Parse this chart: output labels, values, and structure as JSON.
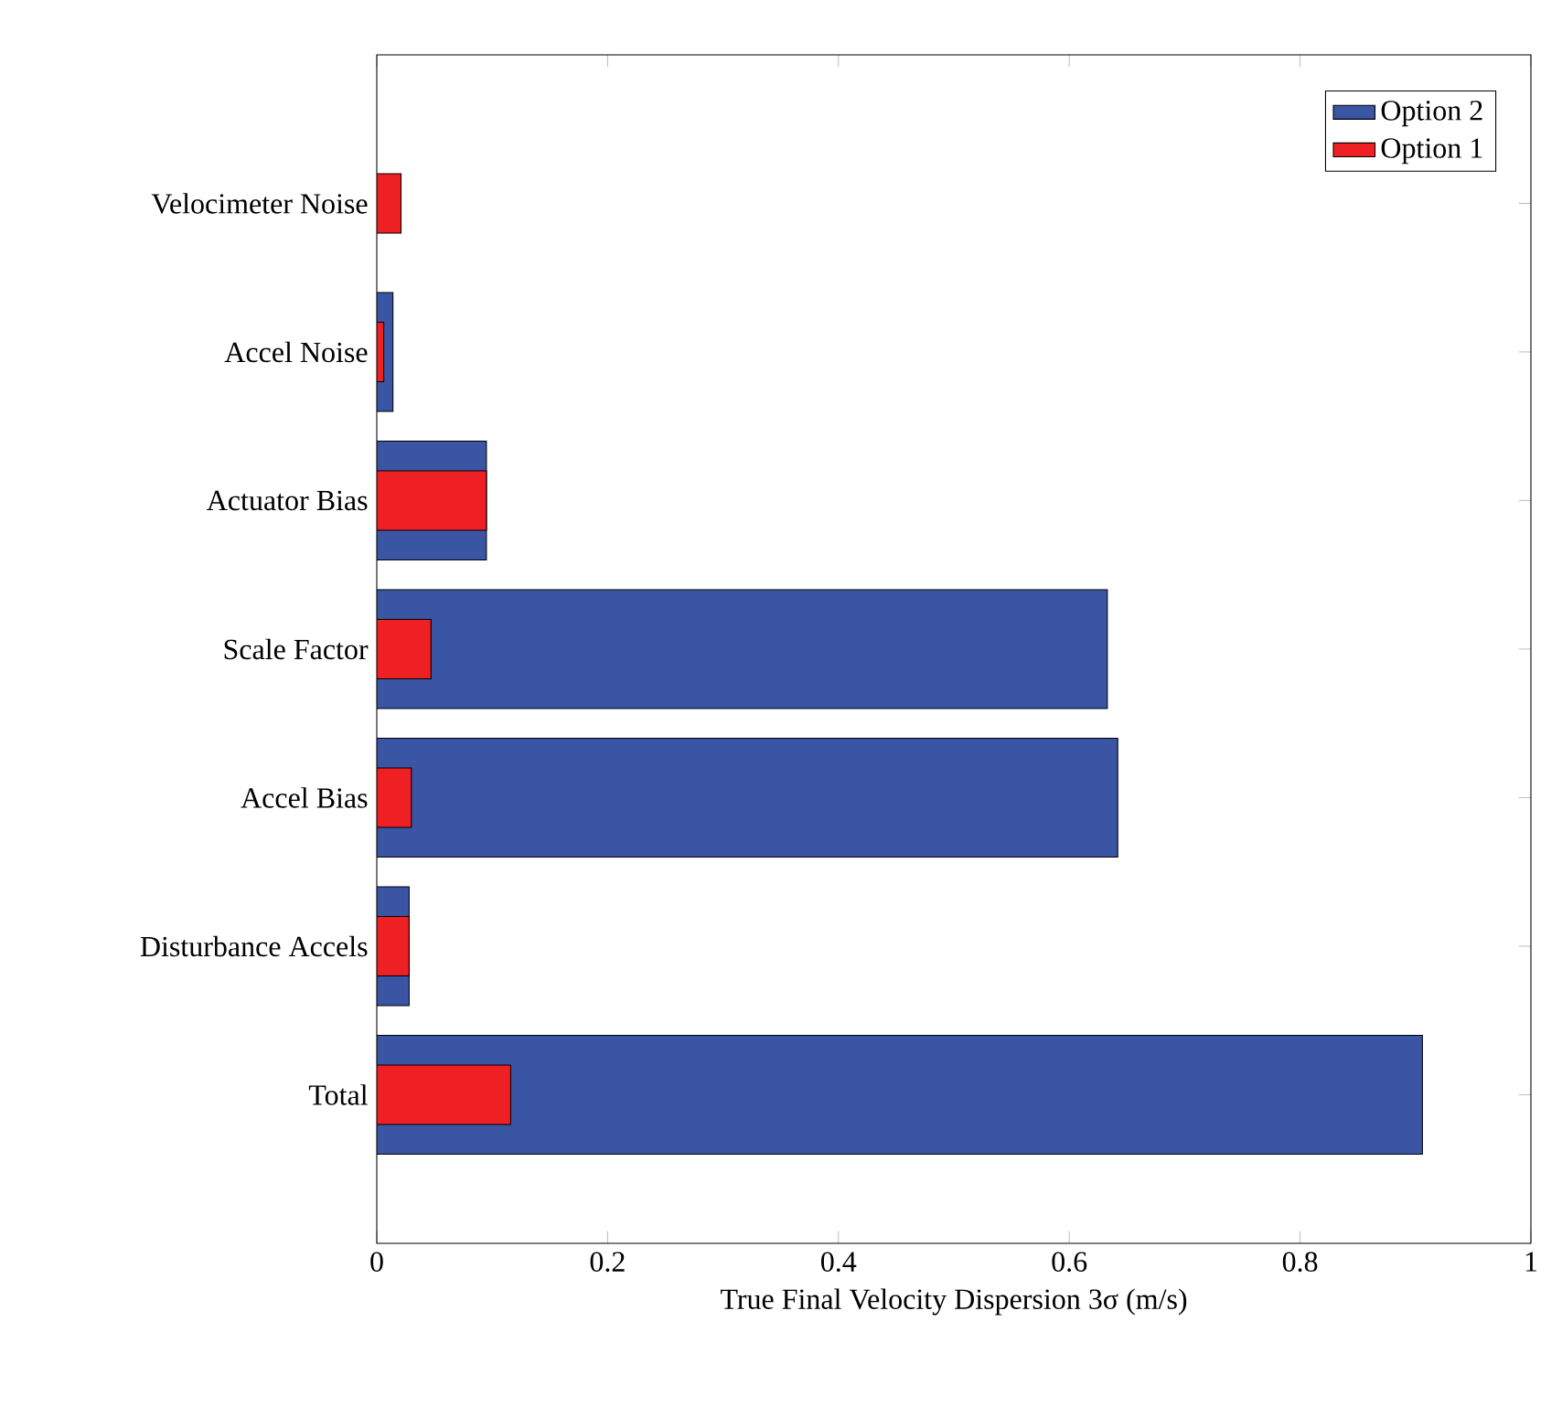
{
  "chart_data": {
    "type": "bar",
    "orientation": "horizontal",
    "categories": [
      "Velocimeter Noise",
      "Accel Noise",
      "Actuator Bias",
      "Scale Factor",
      "Accel Bias",
      "Disturbance Accels",
      "Total"
    ],
    "series": [
      {
        "name": "Option 2",
        "color": "#3a55a4",
        "values": [
          null,
          0.014,
          0.095,
          0.633,
          0.642,
          0.028,
          0.906
        ]
      },
      {
        "name": "Option 1",
        "color": "#ee2024",
        "values": [
          0.021,
          0.006,
          0.095,
          0.047,
          0.03,
          0.028,
          0.116
        ]
      }
    ],
    "xlabel": "True Final Velocity Dispersion 3σ (m/s)",
    "xlim": [
      0,
      1
    ],
    "xticks": [
      0,
      0.2,
      0.4,
      0.6,
      0.8,
      1
    ],
    "legend": "top right",
    "grid": false
  }
}
